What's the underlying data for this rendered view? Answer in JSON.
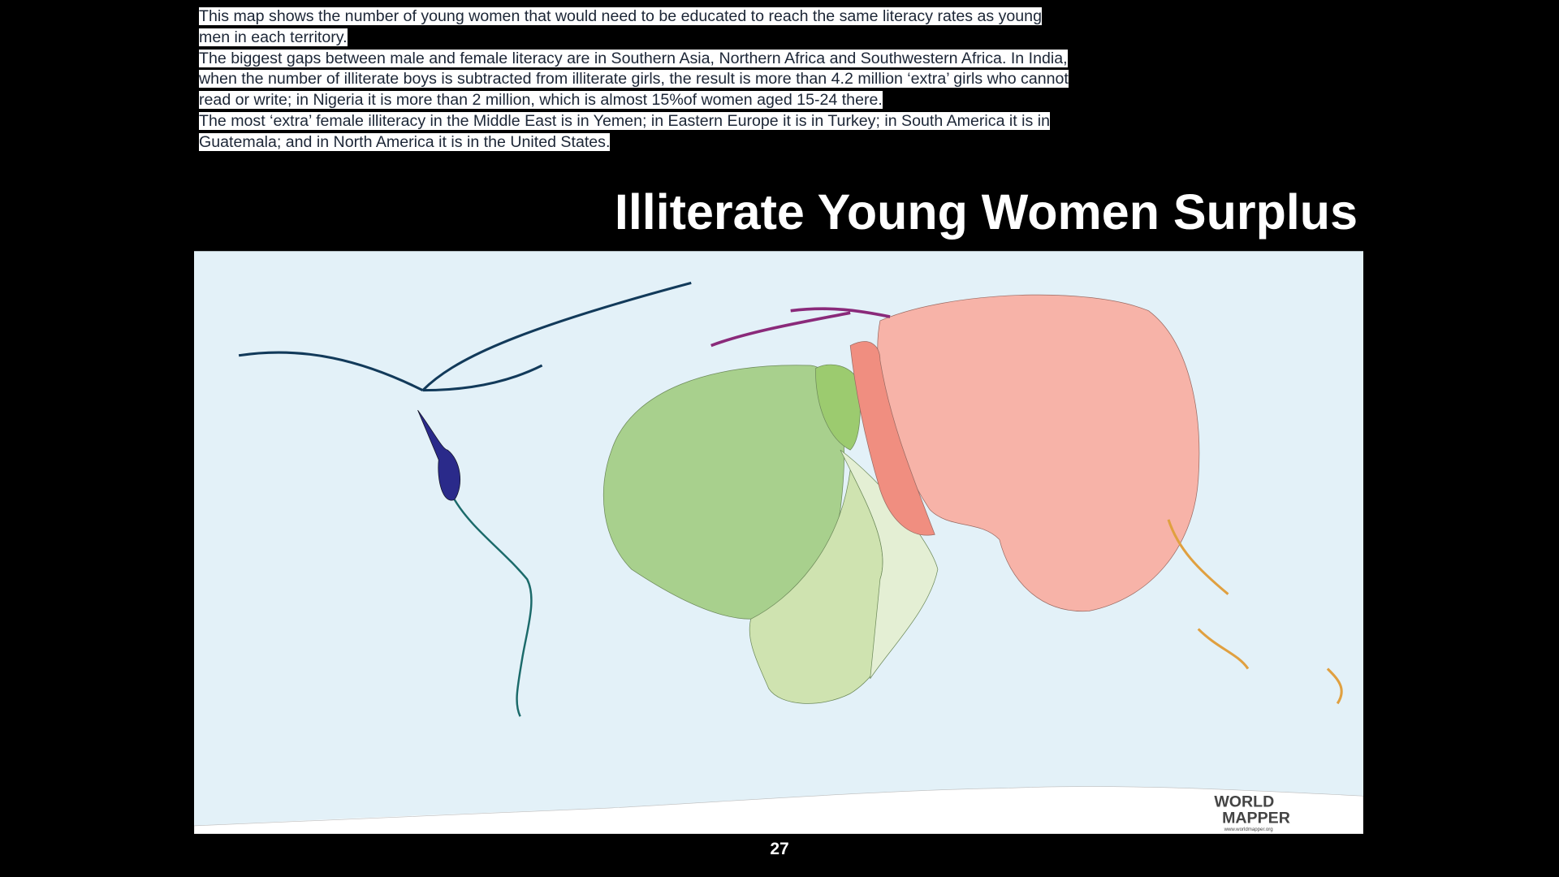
{
  "header": {
    "paragraphs": [
      "This map shows the number of young women that would need to be educated to reach the same literacy rates as young men in each territory.",
      "The biggest gaps between male and female literacy are in Southern Asia, Northern Africa and Southwestern Africa. In India, when the number of illiterate boys is subtracted from illiterate girls, the result is more than 4.2 million ‘extra’ girls who cannot read or write; in Nigeria it is more than 2 million, which is almost 15%of women aged 15-24 there.",
      "The most ‘extra’ female illiteracy in the Middle East is in Yemen; in Eastern Europe it is in Turkey; in South America it is in Guatemala; and in North America it is in the United States."
    ]
  },
  "title": "Illiterate Young Women Surplus",
  "map": {
    "logo": {
      "line1": "WORLD",
      "line2": "MAPPER",
      "url": "www.worldmapper.org"
    }
  },
  "footer": {
    "page_number": "27"
  }
}
